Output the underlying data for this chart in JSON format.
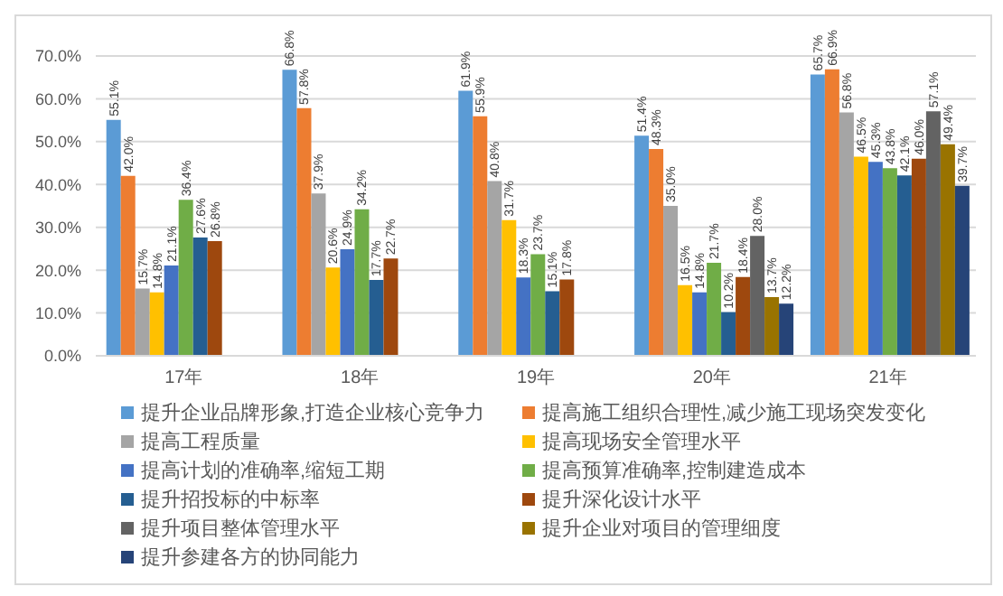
{
  "chart_data": {
    "type": "bar",
    "categories": [
      "17年",
      "18年",
      "19年",
      "20年",
      "21年"
    ],
    "series": [
      {
        "name": "提升企业品牌形象,打造企业核心竞争力",
        "color": "#5b9bd5",
        "values": [
          55.1,
          66.8,
          61.9,
          51.4,
          65.7
        ],
        "value_labels": [
          "55.1%",
          "66.8%",
          "61.9%",
          "51.4%",
          "65.7%"
        ]
      },
      {
        "name": "提高施工组织合理性,减少施工现场突发变化",
        "color": "#ed7d31",
        "values": [
          42.0,
          57.8,
          55.9,
          48.3,
          66.9
        ],
        "value_labels": [
          "42.0%",
          "57.8%",
          "55.9%",
          "48.3%",
          "66.9%"
        ]
      },
      {
        "name": "提高工程质量",
        "color": "#a5a5a5",
        "values": [
          15.7,
          37.9,
          40.8,
          35.0,
          56.8
        ],
        "value_labels": [
          "15.7%",
          "37.9%",
          "40.8%",
          "35.0%",
          "56.8%"
        ]
      },
      {
        "name": "提高现场安全管理水平",
        "color": "#ffc000",
        "values": [
          14.8,
          20.6,
          31.7,
          16.5,
          46.5
        ],
        "value_labels": [
          "14.8%",
          "20.6%",
          "31.7%",
          "16.5%",
          "46.5%"
        ]
      },
      {
        "name": "提高计划的准确率,缩短工期",
        "color": "#4472c4",
        "values": [
          21.1,
          24.9,
          18.3,
          14.8,
          45.3
        ],
        "value_labels": [
          "21.1%",
          "24.9%",
          "18.3%",
          "14.8%",
          "45.3%"
        ]
      },
      {
        "name": "提高预算准确率,控制建造成本",
        "color": "#70ad47",
        "values": [
          36.4,
          34.2,
          23.7,
          21.7,
          43.8
        ],
        "value_labels": [
          "36.4%",
          "34.2%",
          "23.7%",
          "21.7%",
          "43.8%"
        ]
      },
      {
        "name": "提升招投标的中标率",
        "color": "#255e91",
        "values": [
          27.6,
          17.7,
          15.1,
          10.2,
          42.1
        ],
        "value_labels": [
          "27.6%",
          "17.7%",
          "15.1%",
          "10.2%",
          "42.1%"
        ]
      },
      {
        "name": "提升深化设计水平",
        "color": "#9e480e",
        "values": [
          26.8,
          22.7,
          17.8,
          18.4,
          46.0
        ],
        "value_labels": [
          "26.8%",
          "22.7%",
          "17.8%",
          "18.4%",
          "46.0%"
        ]
      },
      {
        "name": "提升项目整体管理水平",
        "color": "#636363",
        "values": [
          null,
          null,
          null,
          28.0,
          57.1
        ],
        "value_labels": [
          null,
          null,
          null,
          "28.0%",
          "57.1%"
        ]
      },
      {
        "name": "提升企业对项目的管理细度",
        "color": "#997300",
        "values": [
          null,
          null,
          null,
          13.7,
          49.4
        ],
        "value_labels": [
          null,
          null,
          null,
          "13.7%",
          "49.4%"
        ]
      },
      {
        "name": "提升参建各方的协同能力",
        "color": "#264478",
        "values": [
          null,
          null,
          null,
          12.2,
          39.7
        ],
        "value_labels": [
          null,
          null,
          null,
          "12.2%",
          "39.7%"
        ]
      }
    ],
    "ylim": [
      0,
      70
    ],
    "yticks": [
      {
        "value": 0,
        "label": "0.0%"
      },
      {
        "value": 10,
        "label": "10.0%"
      },
      {
        "value": 20,
        "label": "20.0%"
      },
      {
        "value": 30,
        "label": "30.0%"
      },
      {
        "value": 40,
        "label": "40.0%"
      },
      {
        "value": 50,
        "label": "50.0%"
      },
      {
        "value": 60,
        "label": "60.0%"
      },
      {
        "value": 70,
        "label": "70.0%"
      }
    ],
    "grid": "y",
    "legend": "bottom"
  }
}
